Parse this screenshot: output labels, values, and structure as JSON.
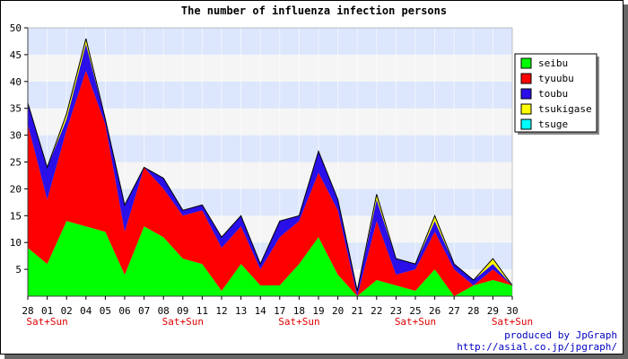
{
  "chart_data": {
    "type": "area",
    "stacked": true,
    "title": "The number of influenza infection persons",
    "x": [
      "28",
      "01",
      "02",
      "04",
      "05",
      "06",
      "07",
      "08",
      "09",
      "11",
      "12",
      "13",
      "14",
      "17",
      "18",
      "19",
      "20",
      "21",
      "22",
      "23",
      "25",
      "26",
      "27",
      "28",
      "29",
      "30"
    ],
    "ylim": [
      0,
      50
    ],
    "yticks": [
      5,
      10,
      15,
      20,
      25,
      30,
      35,
      40,
      45,
      50
    ],
    "grid": true,
    "legend_position": "right",
    "series": [
      {
        "name": "seibu",
        "color": "#00ff00",
        "values": [
          9,
          6,
          14,
          13,
          12,
          4,
          13,
          11,
          7,
          6,
          1,
          6,
          2,
          2,
          6,
          11,
          4,
          0,
          3,
          2,
          1,
          5,
          0,
          2,
          3,
          2
        ]
      },
      {
        "name": "tyuubu",
        "color": "#ff0000",
        "values": [
          23,
          12,
          17,
          29,
          20,
          8,
          11,
          9,
          8,
          10,
          8,
          7,
          3,
          9,
          8,
          12,
          12,
          0,
          11,
          2,
          4,
          7,
          5,
          0,
          2,
          0
        ]
      },
      {
        "name": "toubu",
        "color": "#2a0fe8",
        "values": [
          4,
          6,
          2,
          5,
          1,
          5,
          0,
          2,
          1,
          1,
          2,
          2,
          1,
          3,
          1,
          4,
          2,
          1,
          4,
          3,
          1,
          2,
          1,
          1,
          1,
          0
        ]
      },
      {
        "name": "tsukigase",
        "color": "#ffff00",
        "values": [
          0,
          0,
          1,
          1,
          0,
          0,
          0,
          0,
          0,
          0,
          0,
          0,
          0,
          0,
          0,
          0,
          0,
          0,
          1,
          0,
          0,
          1,
          0,
          0,
          1,
          0
        ]
      },
      {
        "name": "tsuge",
        "color": "#00ffff",
        "values": [
          0,
          0,
          0,
          0,
          0,
          0,
          0,
          0,
          0,
          0,
          0,
          0,
          0,
          0,
          0,
          0,
          0,
          0,
          0,
          0,
          0,
          0,
          0,
          0,
          0,
          0
        ]
      }
    ],
    "annotations": [
      {
        "label": "Sat+Sun",
        "at_index": 1
      },
      {
        "label": "Sat+Sun",
        "at_index": 8
      },
      {
        "label": "Sat+Sun",
        "at_index": 14
      },
      {
        "label": "Sat+Sun",
        "at_index": 20
      },
      {
        "label": "Sat+Sun",
        "at_index": 25
      }
    ]
  },
  "footer": {
    "credit_line1": "produced by JpGraph",
    "credit_line2": "http://asial.co.jp/jpgraph/"
  }
}
